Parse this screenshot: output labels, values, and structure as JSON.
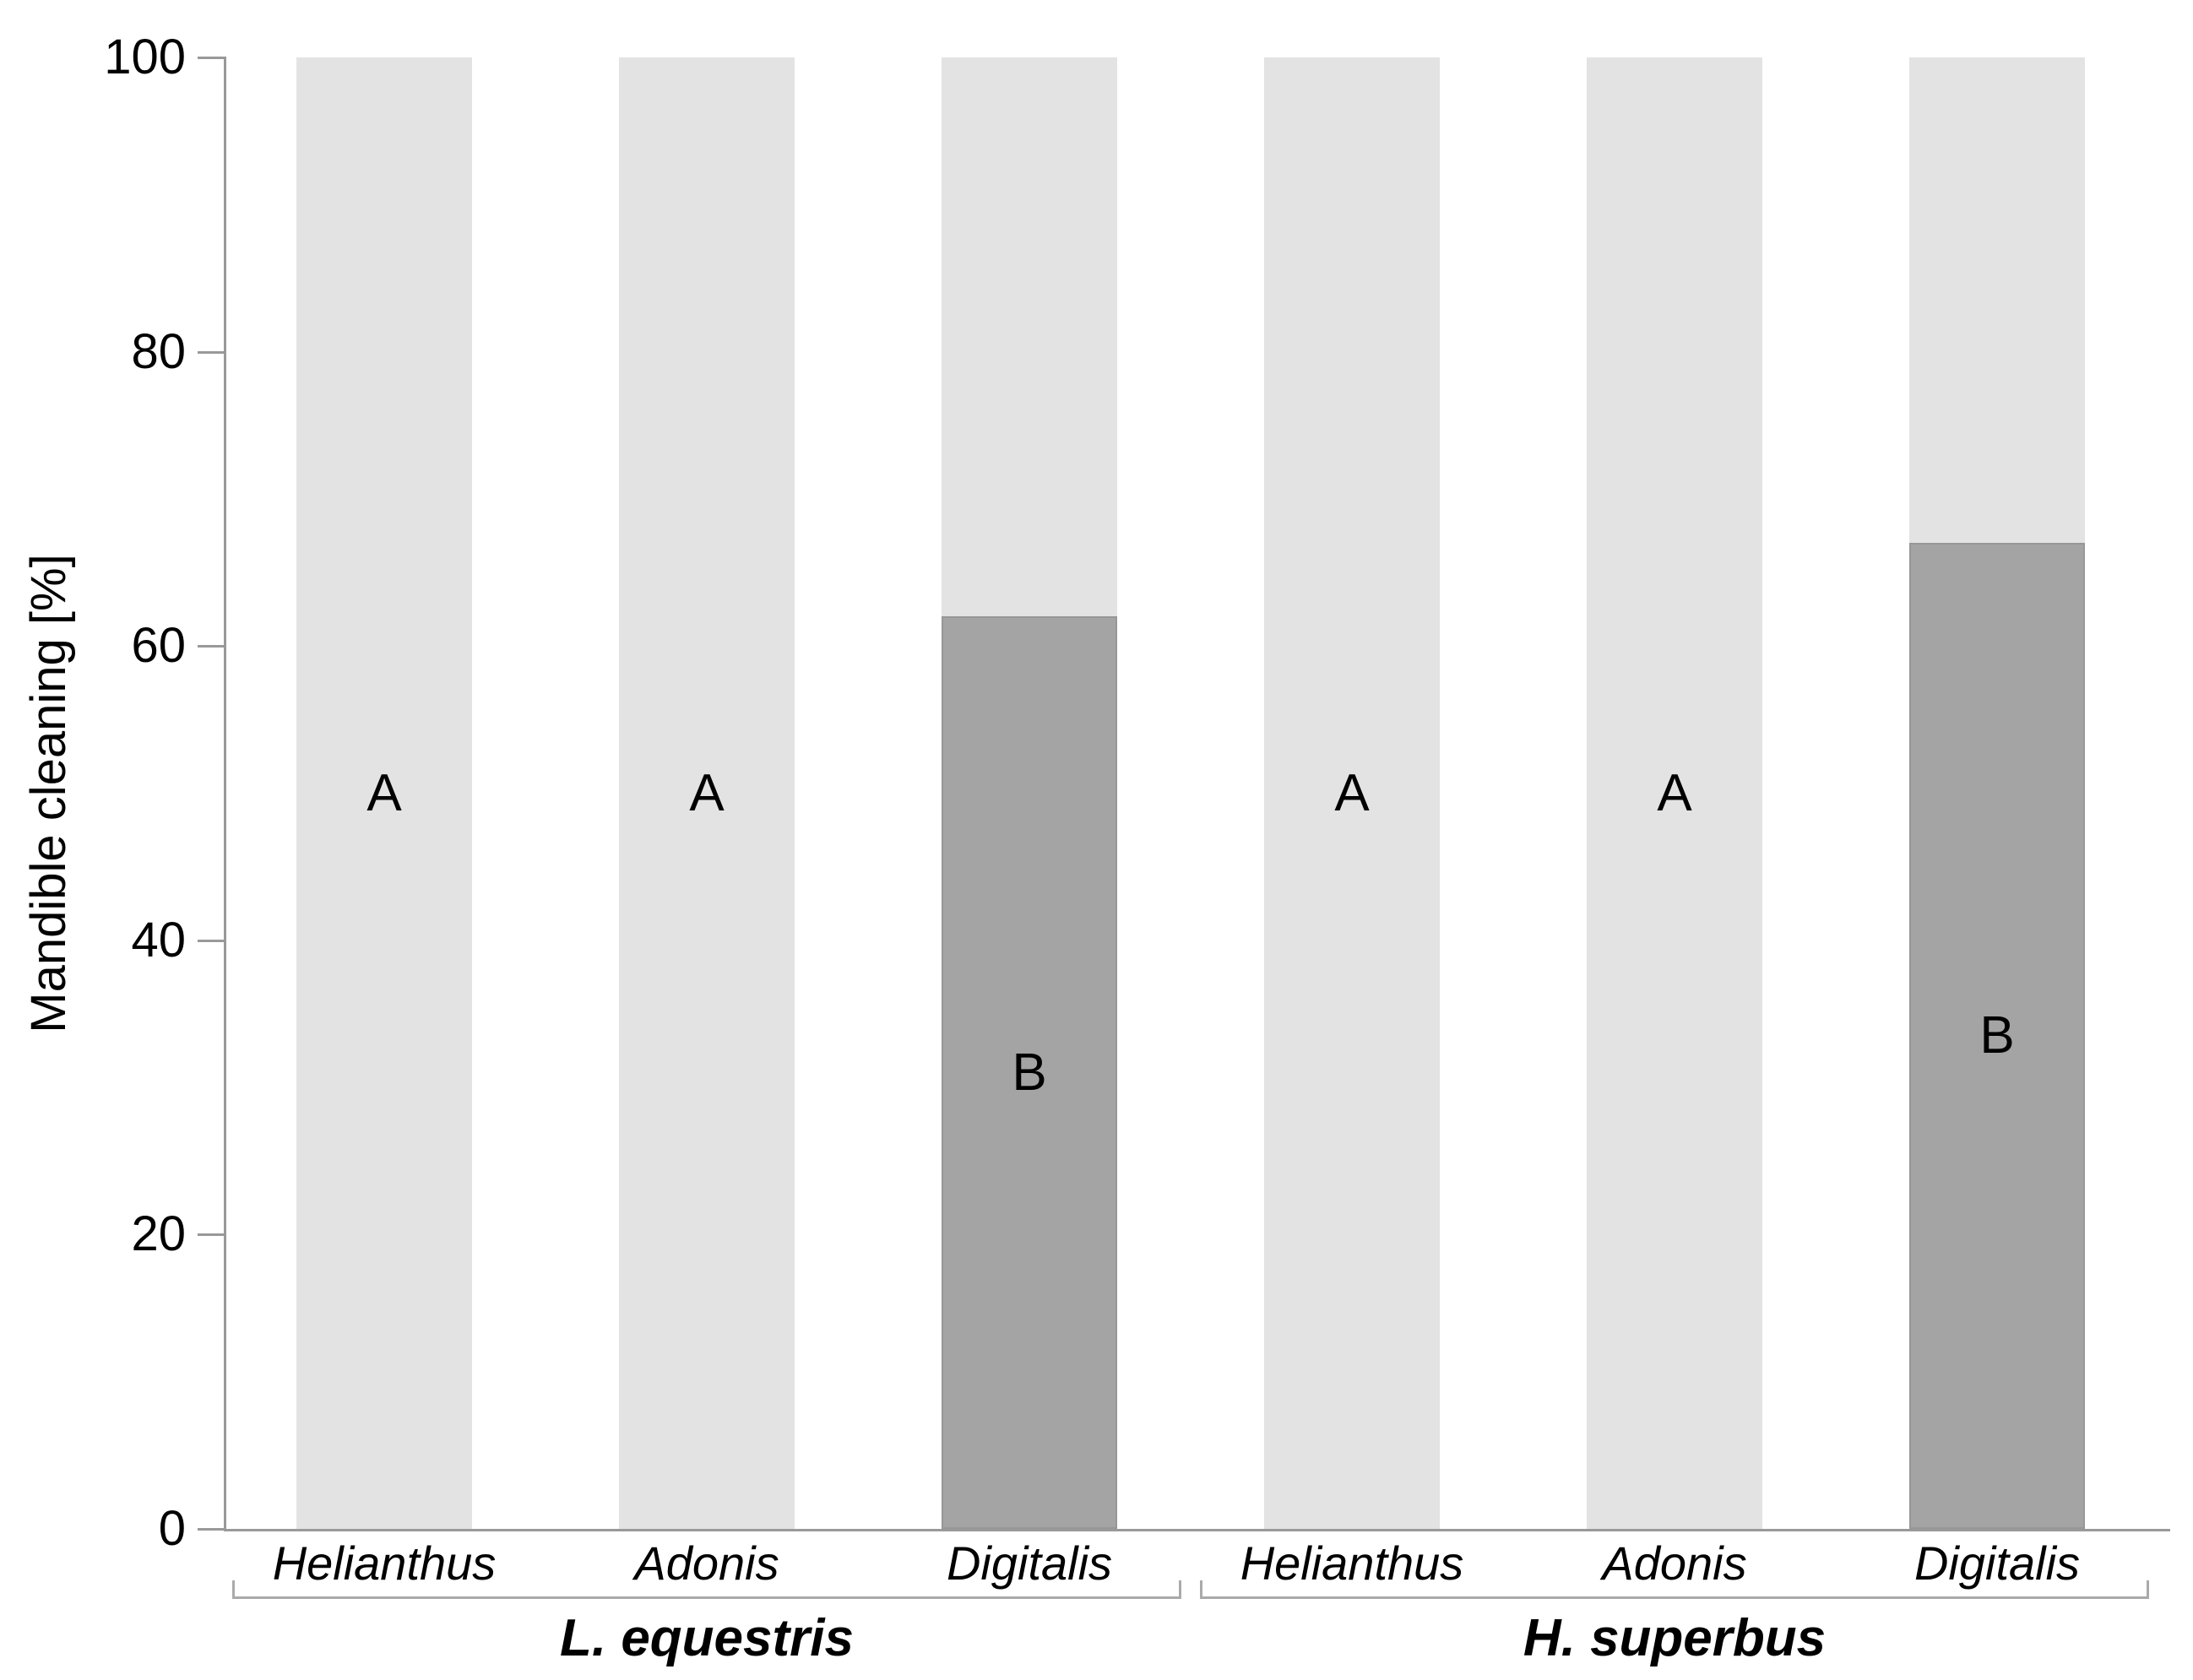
{
  "chart_data": {
    "type": "bar",
    "stacked": true,
    "title": "",
    "xlabel": "",
    "ylabel": "Mandible cleaning [%]",
    "ylim": [
      0,
      100
    ],
    "yticks": [
      0,
      20,
      40,
      60,
      80,
      100
    ],
    "grid": false,
    "legend": "none",
    "colors": {
      "light_segment": "#e3e3e3",
      "dark_segment": "#a4a4a4",
      "axis": "#999999",
      "bracket": "#aaaaaa",
      "text": "#000000"
    },
    "groups": [
      {
        "label": "L. equestris",
        "bars": [
          {
            "category": "Helianthus",
            "total": 100,
            "dark_segment": 0,
            "letter": "A",
            "letter_at": 50
          },
          {
            "category": "Adonis",
            "total": 100,
            "dark_segment": 0,
            "letter": "A",
            "letter_at": 50
          },
          {
            "category": "Digitalis",
            "total": 100,
            "dark_segment": 62,
            "letter": "B",
            "letter_at": 31
          }
        ]
      },
      {
        "label": "H. superbus",
        "bars": [
          {
            "category": "Helianthus",
            "total": 100,
            "dark_segment": 0,
            "letter": "A",
            "letter_at": 50
          },
          {
            "category": "Adonis",
            "total": 100,
            "dark_segment": 0,
            "letter": "A",
            "letter_at": 50
          },
          {
            "category": "Digitalis",
            "total": 100,
            "dark_segment": 67,
            "letter": "B",
            "letter_at": 33.5
          }
        ]
      }
    ]
  }
}
